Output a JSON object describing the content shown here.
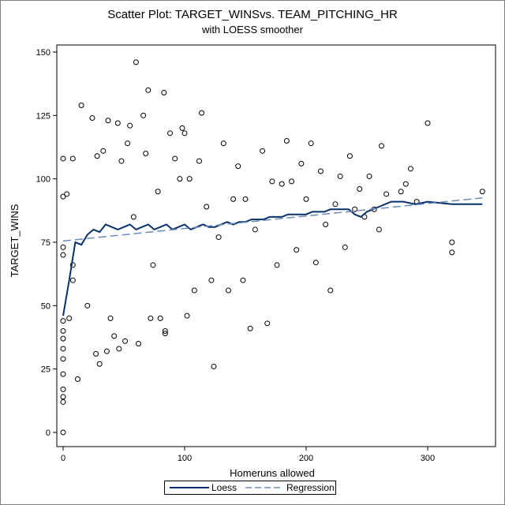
{
  "chart_data": {
    "type": "scatter",
    "title": "Scatter Plot: TARGET_WINSvs. TEAM_PITCHING_HR",
    "subtitle": "with LOESS smoother",
    "xlabel": "Homeruns allowed",
    "ylabel": "TARGET_WINS",
    "xlim": [
      0,
      350
    ],
    "ylim": [
      0,
      150
    ],
    "x_ticks": [
      0,
      100,
      200,
      300
    ],
    "y_ticks": [
      0,
      25,
      50,
      75,
      100,
      125,
      150
    ],
    "grid": false,
    "legend_position": "bottom",
    "series": [
      {
        "name": "",
        "type": "scatter",
        "marker": "open-circle",
        "color": "#000000",
        "points": [
          [
            0,
            0
          ],
          [
            0,
            12
          ],
          [
            0,
            14
          ],
          [
            0,
            17
          ],
          [
            0,
            23
          ],
          [
            0,
            29
          ],
          [
            0,
            33
          ],
          [
            0,
            37
          ],
          [
            0,
            40
          ],
          [
            0,
            44
          ],
          [
            0,
            70
          ],
          [
            0,
            73
          ],
          [
            0,
            93
          ],
          [
            0,
            108
          ],
          [
            3,
            94
          ],
          [
            5,
            45
          ],
          [
            8,
            60
          ],
          [
            8,
            66
          ],
          [
            8,
            108
          ],
          [
            12,
            21
          ],
          [
            15,
            129
          ],
          [
            20,
            50
          ],
          [
            24,
            124
          ],
          [
            27,
            31
          ],
          [
            28,
            109
          ],
          [
            30,
            27
          ],
          [
            33,
            111
          ],
          [
            36,
            32
          ],
          [
            37,
            123
          ],
          [
            39,
            45
          ],
          [
            42,
            38
          ],
          [
            45,
            122
          ],
          [
            46,
            33
          ],
          [
            48,
            107
          ],
          [
            51,
            36
          ],
          [
            53,
            114
          ],
          [
            55,
            121
          ],
          [
            58,
            85
          ],
          [
            60,
            146
          ],
          [
            62,
            35
          ],
          [
            66,
            125
          ],
          [
            68,
            110
          ],
          [
            70,
            135
          ],
          [
            72,
            45
          ],
          [
            74,
            66
          ],
          [
            78,
            95
          ],
          [
            80,
            45
          ],
          [
            83,
            134
          ],
          [
            84,
            40
          ],
          [
            84,
            39
          ],
          [
            88,
            118
          ],
          [
            92,
            108
          ],
          [
            96,
            100
          ],
          [
            98,
            120
          ],
          [
            100,
            118
          ],
          [
            102,
            46
          ],
          [
            104,
            100
          ],
          [
            108,
            56
          ],
          [
            112,
            107
          ],
          [
            114,
            126
          ],
          [
            118,
            89
          ],
          [
            122,
            60
          ],
          [
            124,
            26
          ],
          [
            128,
            77
          ],
          [
            132,
            114
          ],
          [
            136,
            56
          ],
          [
            140,
            92
          ],
          [
            144,
            105
          ],
          [
            148,
            60
          ],
          [
            150,
            92
          ],
          [
            154,
            41
          ],
          [
            158,
            80
          ],
          [
            164,
            111
          ],
          [
            168,
            43
          ],
          [
            172,
            99
          ],
          [
            176,
            66
          ],
          [
            180,
            98
          ],
          [
            184,
            115
          ],
          [
            188,
            99
          ],
          [
            192,
            72
          ],
          [
            196,
            106
          ],
          [
            200,
            92
          ],
          [
            204,
            114
          ],
          [
            208,
            67
          ],
          [
            212,
            103
          ],
          [
            216,
            82
          ],
          [
            220,
            56
          ],
          [
            224,
            90
          ],
          [
            228,
            101
          ],
          [
            232,
            73
          ],
          [
            236,
            109
          ],
          [
            240,
            88
          ],
          [
            244,
            96
          ],
          [
            248,
            85
          ],
          [
            252,
            101
          ],
          [
            256,
            88
          ],
          [
            260,
            80
          ],
          [
            262,
            113
          ],
          [
            266,
            94
          ],
          [
            278,
            95
          ],
          [
            282,
            98
          ],
          [
            286,
            104
          ],
          [
            291,
            91
          ],
          [
            300,
            122
          ],
          [
            320,
            75
          ],
          [
            320,
            71
          ],
          [
            345,
            95
          ]
        ]
      },
      {
        "name": "Loess",
        "type": "line",
        "style": "solid",
        "color": "#08306b",
        "points": [
          [
            0,
            46
          ],
          [
            5,
            60
          ],
          [
            10,
            75
          ],
          [
            15,
            74
          ],
          [
            20,
            78
          ],
          [
            25,
            80
          ],
          [
            30,
            79
          ],
          [
            35,
            82
          ],
          [
            40,
            81
          ],
          [
            45,
            80
          ],
          [
            50,
            81
          ],
          [
            55,
            82
          ],
          [
            60,
            80
          ],
          [
            65,
            81
          ],
          [
            70,
            82
          ],
          [
            75,
            80
          ],
          [
            80,
            81
          ],
          [
            85,
            82
          ],
          [
            90,
            80
          ],
          [
            95,
            81
          ],
          [
            100,
            82
          ],
          [
            105,
            80
          ],
          [
            110,
            81
          ],
          [
            115,
            82
          ],
          [
            120,
            81
          ],
          [
            125,
            81
          ],
          [
            130,
            82
          ],
          [
            135,
            83
          ],
          [
            140,
            82
          ],
          [
            145,
            83
          ],
          [
            150,
            83
          ],
          [
            155,
            84
          ],
          [
            160,
            84
          ],
          [
            165,
            84
          ],
          [
            170,
            85
          ],
          [
            175,
            85
          ],
          [
            180,
            85
          ],
          [
            185,
            86
          ],
          [
            190,
            86
          ],
          [
            195,
            86
          ],
          [
            200,
            86
          ],
          [
            205,
            87
          ],
          [
            210,
            87
          ],
          [
            215,
            87
          ],
          [
            220,
            88
          ],
          [
            225,
            88
          ],
          [
            230,
            88
          ],
          [
            235,
            88
          ],
          [
            240,
            86
          ],
          [
            245,
            85
          ],
          [
            250,
            87
          ],
          [
            255,
            88
          ],
          [
            260,
            89
          ],
          [
            265,
            90
          ],
          [
            270,
            91
          ],
          [
            280,
            91
          ],
          [
            290,
            90
          ],
          [
            300,
            91
          ],
          [
            320,
            90
          ],
          [
            345,
            90
          ]
        ]
      },
      {
        "name": "Regression",
        "type": "line",
        "style": "dashed",
        "color": "#6a8ab8",
        "points": [
          [
            0,
            75.5
          ],
          [
            345,
            92.5
          ]
        ]
      }
    ]
  },
  "legend": {
    "items": [
      {
        "label": "Loess",
        "color": "#08306b",
        "style": "solid"
      },
      {
        "label": "Regression",
        "color": "#6a8ab8",
        "style": "dashed"
      }
    ]
  }
}
